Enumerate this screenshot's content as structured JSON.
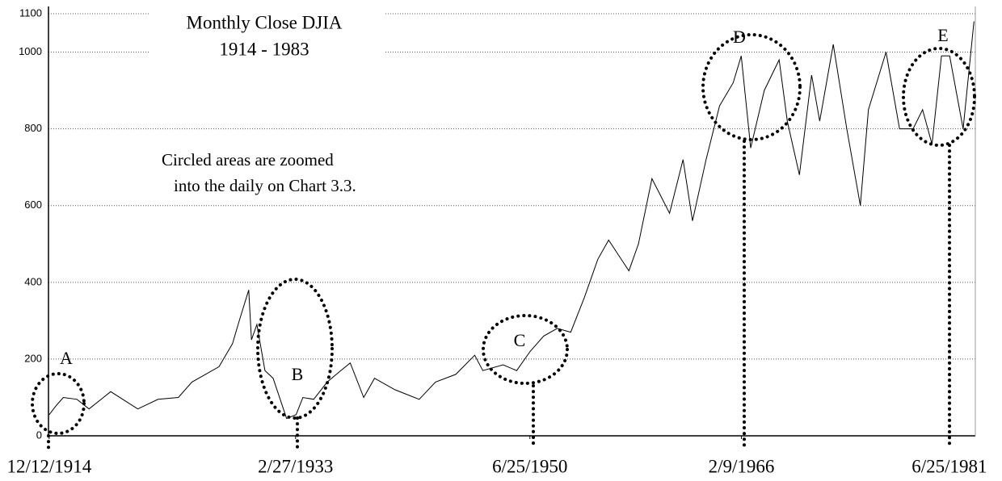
{
  "chart_data": {
    "type": "line",
    "title": [
      "Monthly Close DJIA",
      "1914 - 1983"
    ],
    "note": [
      "Circled areas are zoomed",
      "into the daily on Chart 3.3."
    ],
    "annotations": [
      "A",
      "B",
      "C",
      "D",
      "E"
    ],
    "x": [
      1914.95,
      1915.5,
      1916,
      1917,
      1917.9,
      1919.5,
      1921.5,
      1923,
      1924.5,
      1925.5,
      1926.5,
      1927.5,
      1928.5,
      1929.0,
      1929.7,
      1929.9,
      1930.3,
      1930.9,
      1931.5,
      1932.5,
      1933.2,
      1933.7,
      1934.5,
      1935.5,
      1936.5,
      1937.2,
      1938.2,
      1939,
      1940.5,
      1942.3,
      1943.5,
      1945,
      1946.4,
      1947,
      1948.5,
      1949.5,
      1950.5,
      1951.5,
      1952.5,
      1953.5,
      1954.5,
      1955.5,
      1956.3,
      1957.8,
      1958.5,
      1959.5,
      1960.8,
      1961.8,
      1962.5,
      1963.5,
      1964.5,
      1965.5,
      1966.1,
      1966.8,
      1967.8,
      1968.9,
      1969.5,
      1970.4,
      1971.3,
      1971.9,
      1972.9,
      1973.9,
      1974.9,
      1975.5,
      1976.8,
      1977.8,
      1978.8,
      1979.5,
      1980.2,
      1980.9,
      1981.5,
      1982.5,
      1983.3
    ],
    "values": [
      55,
      80,
      100,
      95,
      70,
      115,
      70,
      95,
      100,
      140,
      160,
      180,
      240,
      300,
      380,
      250,
      290,
      170,
      150,
      45,
      55,
      100,
      95,
      140,
      170,
      190,
      100,
      150,
      120,
      95,
      140,
      160,
      210,
      170,
      185,
      170,
      220,
      260,
      280,
      270,
      360,
      460,
      510,
      430,
      500,
      670,
      580,
      720,
      560,
      720,
      860,
      920,
      990,
      750,
      900,
      980,
      820,
      680,
      940,
      820,
      1020,
      800,
      600,
      850,
      1000,
      800,
      800,
      850,
      760,
      990,
      990,
      800,
      1080
    ],
    "color": "#000000",
    "xlim": [
      1914.9,
      1983.4
    ],
    "xticks": [
      {
        "value": 1914.95,
        "label": "12/12/1914"
      },
      {
        "value": 1933.16,
        "label": "2/27/1933"
      },
      {
        "value": 1950.48,
        "label": "6/25/1950"
      },
      {
        "value": 1966.11,
        "label": "2/9/1966"
      },
      {
        "value": 1981.48,
        "label": "6/25/1981"
      }
    ],
    "ylim": [
      0,
      1100
    ],
    "yticks": [
      0,
      200,
      400,
      600,
      800,
      1000,
      1100
    ],
    "grid": true
  }
}
